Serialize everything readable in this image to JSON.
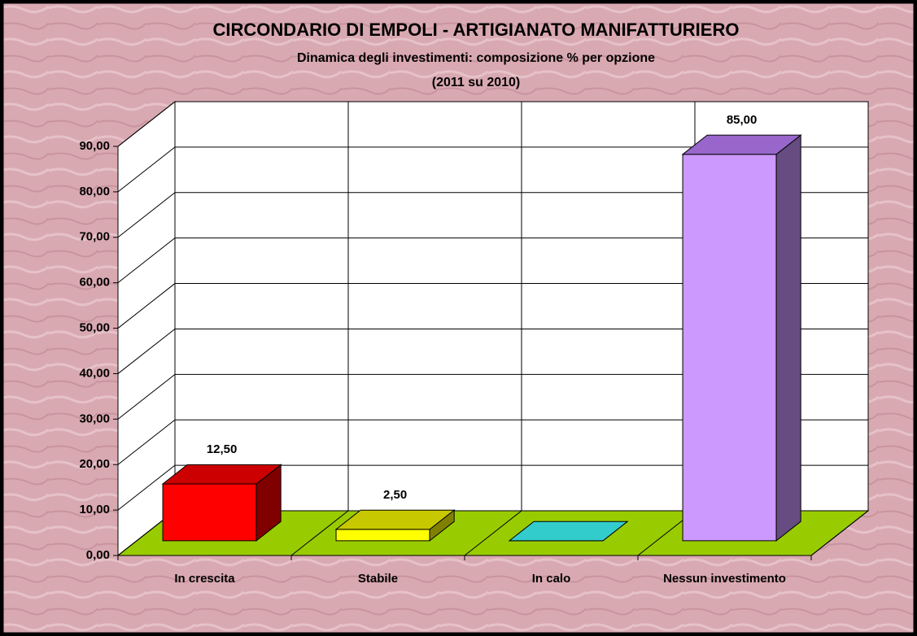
{
  "chart_data": {
    "type": "bar3d",
    "title": "CIRCONDARIO DI EMPOLI - ARTIGIANATO MANIFATTURIERO",
    "subtitle": [
      "Dinamica degli investimenti: composizione % per opzione",
      "(2011 su 2010)"
    ],
    "categories": [
      "In crescita",
      "Stabile",
      "In calo",
      "Nessun investimento"
    ],
    "values": [
      12.5,
      2.5,
      0,
      85
    ],
    "value_labels": [
      "12,50",
      "2,50",
      null,
      "85,00"
    ],
    "colors": [
      {
        "front": "#ff0000",
        "top": "#cc0000",
        "side": "#800000"
      },
      {
        "front": "#ffff00",
        "top": "#c8c800",
        "side": "#808000"
      },
      {
        "front": "#33cccc",
        "top": "#33cccc",
        "side": "#1a8080"
      },
      {
        "front": "#cc99ff",
        "top": "#9966cc",
        "side": "#664c80"
      }
    ],
    "floor_color": "#99cc00",
    "ylim": [
      0,
      90
    ],
    "yticks": [
      {
        "value": 0,
        "label": "0,00"
      },
      {
        "value": 10,
        "label": "10,00"
      },
      {
        "value": 20,
        "label": "20,00"
      },
      {
        "value": 30,
        "label": "30,00"
      },
      {
        "value": 40,
        "label": "40,00"
      },
      {
        "value": 50,
        "label": "50,00"
      },
      {
        "value": 60,
        "label": "60,00"
      },
      {
        "value": 70,
        "label": "70,00"
      },
      {
        "value": 80,
        "label": "80,00"
      },
      {
        "value": 90,
        "label": "90,00"
      }
    ],
    "grid": true
  }
}
